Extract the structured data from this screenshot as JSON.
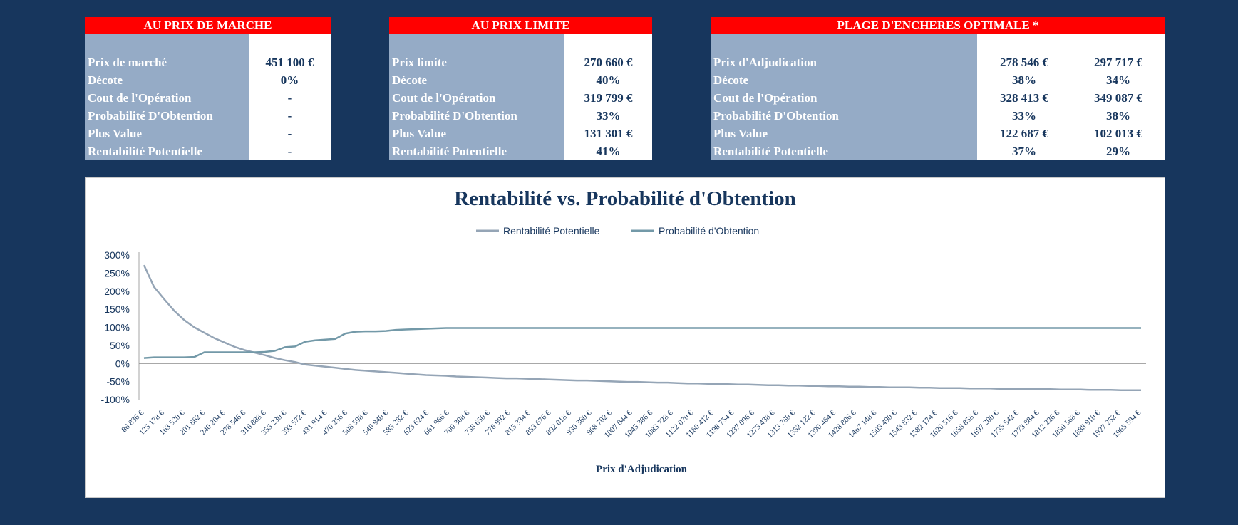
{
  "panels": {
    "market": {
      "title": "AU PRIX DE MARCHE",
      "rows": [
        {
          "label": "Prix de marché",
          "value": "451 100 €"
        },
        {
          "label": "Décote",
          "value": "0%"
        },
        {
          "label": "Cout de l'Opération",
          "value": "-"
        },
        {
          "label": "Probabilité D'Obtention",
          "value": "-"
        },
        {
          "label": "Plus Value",
          "value": "-"
        },
        {
          "label": "Rentabilité Potentielle",
          "value": "-"
        }
      ]
    },
    "limit": {
      "title": "AU PRIX LIMITE",
      "rows": [
        {
          "label": "Prix limite",
          "value": "270 660 €"
        },
        {
          "label": "Décote",
          "value": "40%"
        },
        {
          "label": "Cout de l'Opération",
          "value": "319 799 €"
        },
        {
          "label": "Probabilité D'Obtention",
          "value": "33%"
        },
        {
          "label": "Plus Value",
          "value": "131 301 €"
        },
        {
          "label": "Rentabilité Potentielle",
          "value": "41%"
        }
      ]
    },
    "optimal": {
      "title": "PLAGE D'ENCHERES OPTIMALE *",
      "rows": [
        {
          "label": "Prix d'Adjudication",
          "value1": "278 546 €",
          "value2": "297 717 €"
        },
        {
          "label": "Décote",
          "value1": "38%",
          "value2": "34%"
        },
        {
          "label": "Cout de l'Opération",
          "value1": "328 413 €",
          "value2": "349 087 €"
        },
        {
          "label": "Probabilité D'Obtention",
          "value1": "33%",
          "value2": "38%"
        },
        {
          "label": "Plus Value",
          "value1": "122 687 €",
          "value2": "102 013 €"
        },
        {
          "label": "Rentabilité Potentielle",
          "value1": "37%",
          "value2": "29%"
        }
      ]
    }
  },
  "colors": {
    "background": "#17365d",
    "header": "#ff0000",
    "label_bg": "#95abc6",
    "value_text": "#17365d",
    "series_rentabilite": "#95a5b6",
    "series_probabilite": "#7399a8"
  },
  "chart_data": {
    "type": "line",
    "title": "Rentabilité vs. Probabilité d'Obtention",
    "xlabel": "Prix d'Adjudication",
    "ylabel": "",
    "ylim": [
      -100,
      300
    ],
    "yticks": [
      "300%",
      "250%",
      "200%",
      "150%",
      "100%",
      "50%",
      "0%",
      "-50%",
      "-100%"
    ],
    "legend": "top",
    "x_ticks": [
      "86 836 €",
      "125 178 €",
      "163 520 €",
      "201 862 €",
      "240 204 €",
      "278 546 €",
      "316 888 €",
      "355 230 €",
      "393 572 €",
      "431 914 €",
      "470 256 €",
      "508 598 €",
      "546 940 €",
      "585 282 €",
      "623 624 €",
      "661 966 €",
      "700 308 €",
      "738 650 €",
      "776 992 €",
      "815 334 €",
      "853 676 €",
      "892 018 €",
      "930 360 €",
      "968 702 €",
      "1007 044 €",
      "1045 386 €",
      "1083 728 €",
      "1122 070 €",
      "1160 412 €",
      "1198 754 €",
      "1237 096 €",
      "1275 438 €",
      "1313 780 €",
      "1352 122 €",
      "1390 464 €",
      "1428 806 €",
      "1467 148 €",
      "1505 490 €",
      "1543 832 €",
      "1582 174 €",
      "1620 516 €",
      "1658 858 €",
      "1697 200 €",
      "1735 542 €",
      "1773 884 €",
      "1812 226 €",
      "1850 568 €",
      "1888 910 €",
      "1927 252 €",
      "1965 594 €"
    ],
    "series": [
      {
        "name": "Rentabilité Potentielle",
        "values": [
          272,
          212,
          178,
          146,
          120,
          100,
          85,
          70,
          58,
          46,
          37,
          30,
          23,
          15,
          9,
          4,
          -3,
          -6,
          -9,
          -12,
          -15,
          -18,
          -20,
          -22,
          -24,
          -26,
          -28,
          -30,
          -32,
          -33,
          -34,
          -36,
          -37,
          -38,
          -39,
          -40,
          -41,
          -41,
          -42,
          -43,
          -44,
          -45,
          -46,
          -47,
          -47,
          -48,
          -49,
          -50,
          -51,
          -51,
          -52,
          -53,
          -53,
          -54,
          -55,
          -55,
          -56,
          -57,
          -57,
          -58,
          -58,
          -59,
          -60,
          -60,
          -61,
          -61,
          -62,
          -62,
          -63,
          -63,
          -64,
          -64,
          -65,
          -65,
          -66,
          -66,
          -66,
          -67,
          -67,
          -68,
          -68,
          -68,
          -69,
          -69,
          -69,
          -70,
          -70,
          -70,
          -71,
          -71,
          -71,
          -72,
          -72,
          -72,
          -73,
          -73,
          -73,
          -74,
          -74,
          -74
        ]
      },
      {
        "name": "Probabilité d'Obtention",
        "values": [
          15,
          17,
          17,
          17,
          17,
          18,
          31,
          31,
          31,
          31,
          31,
          31,
          32,
          35,
          45,
          47,
          60,
          64,
          66,
          68,
          83,
          88,
          89,
          89,
          90,
          93,
          94,
          95,
          96,
          97,
          98,
          98,
          98,
          98,
          98,
          98,
          98,
          98,
          98,
          98,
          98,
          98,
          98,
          98,
          98,
          98,
          98,
          98,
          98,
          98,
          98,
          98,
          98,
          98,
          98,
          98,
          98,
          98,
          98,
          98,
          98,
          98,
          98,
          98,
          98,
          98,
          98,
          98,
          98,
          98,
          98,
          98,
          98,
          98,
          98,
          98,
          98,
          98,
          98,
          98,
          98,
          98,
          98,
          98,
          98,
          98,
          98,
          98,
          98,
          98,
          98,
          98,
          98,
          98,
          98,
          98,
          98,
          98,
          98,
          98
        ]
      }
    ]
  }
}
